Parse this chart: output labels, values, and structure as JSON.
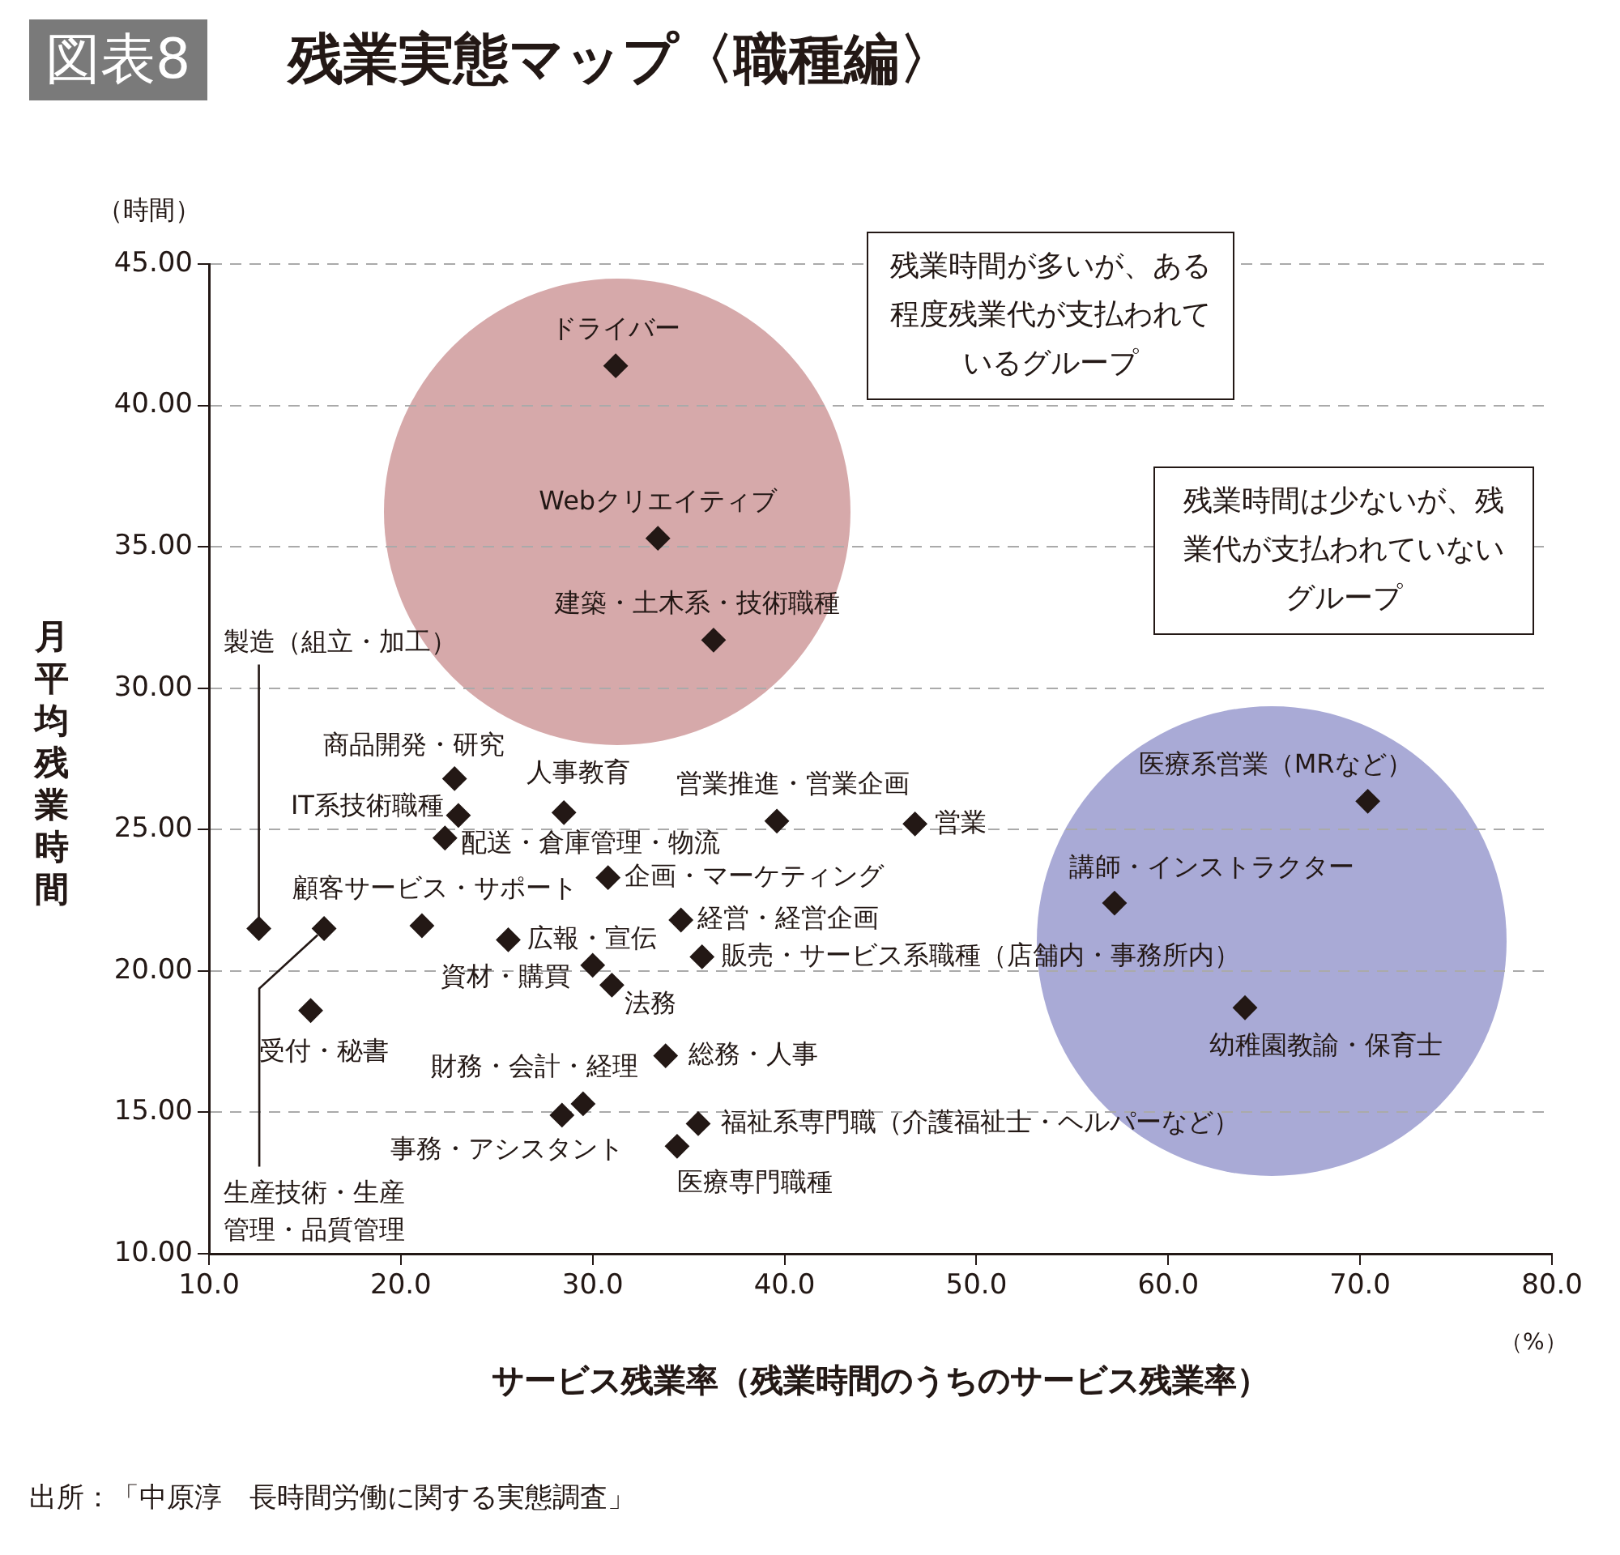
{
  "chart_data": {
    "type": "scatter",
    "title": "残業実態マップ〈職種編〉",
    "xlabel": "サービス残業率（残業時間のうちのサービス残業率）",
    "ylabel": "月平均残業時間",
    "x": [
      31.2,
      33.4,
      36.3,
      12.6,
      22.8,
      23.0,
      28.5,
      22.3,
      39.6,
      46.8,
      30.8,
      21.1,
      16.0,
      25.6,
      34.6,
      30.0,
      35.7,
      31.0,
      15.3,
      33.8,
      29.5,
      28.4,
      35.5,
      34.4,
      70.4,
      57.2,
      64.0
    ],
    "values": [
      41.4,
      35.3,
      31.7,
      21.5,
      26.8,
      25.5,
      25.6,
      24.7,
      25.3,
      25.2,
      23.3,
      21.6,
      21.5,
      21.1,
      21.8,
      20.2,
      20.5,
      19.5,
      18.6,
      17.0,
      15.3,
      14.9,
      14.6,
      13.8,
      26.0,
      22.4,
      18.7
    ],
    "color": "#231815",
    "marker": "diamond",
    "xlim": [
      10,
      80
    ],
    "ylim": [
      10,
      45
    ],
    "xticks": [
      {
        "value": 10,
        "label": "10.0"
      },
      {
        "value": 20,
        "label": "20.0"
      },
      {
        "value": 30,
        "label": "30.0"
      },
      {
        "value": 40,
        "label": "40.0"
      },
      {
        "value": 50,
        "label": "50.0"
      },
      {
        "value": 60,
        "label": "60.0"
      },
      {
        "value": 70,
        "label": "70.0"
      },
      {
        "value": 80,
        "label": "80.0"
      }
    ],
    "yticks": [
      {
        "value": 10,
        "label": "10.00"
      },
      {
        "value": 15,
        "label": "15.00"
      },
      {
        "value": 20,
        "label": "20.00"
      },
      {
        "value": 25,
        "label": "25.00"
      },
      {
        "value": 30,
        "label": "30.00"
      },
      {
        "value": 35,
        "label": "35.00"
      },
      {
        "value": 40,
        "label": "40.00"
      },
      {
        "value": 45,
        "label": "45.00"
      }
    ],
    "grid": "y",
    "annotations": [
      "図表8",
      "残業時間が多いが、ある程度残業代が支払われているグループ",
      "残業時間は少ないが、残業代が支払われていないグループ",
      "（時間）",
      "（%）",
      "出所：「中原淳　長時間労働に関する実態調査」",
      {
        "text": "ドライバー",
        "x": 31.2,
        "y": 41.4
      },
      {
        "text": "Webクリエイティブ",
        "x": 33.4,
        "y": 35.3
      },
      {
        "text": "建築・土木系・技術職種",
        "x": 36.3,
        "y": 31.7
      },
      {
        "text": "製造（組立・加工）",
        "x": 12.6,
        "y": 21.5
      },
      {
        "text": "商品開発・研究",
        "x": 22.8,
        "y": 26.8
      },
      {
        "text": "IT系技術職種",
        "x": 23.0,
        "y": 25.5
      },
      {
        "text": "人事教育",
        "x": 28.5,
        "y": 25.6
      },
      {
        "text": "配送・倉庫管理・物流",
        "x": 22.3,
        "y": 24.7
      },
      {
        "text": "営業推進・営業企画",
        "x": 39.6,
        "y": 25.3
      },
      {
        "text": "営業",
        "x": 46.8,
        "y": 25.2
      },
      {
        "text": "企画・マーケティング",
        "x": 30.8,
        "y": 23.3
      },
      {
        "text": "顧客サービス・サポート",
        "x": 21.1,
        "y": 21.6
      },
      {
        "text": "生産技術・生産管理・品質管理",
        "x": 16.0,
        "y": 21.5
      },
      {
        "text": "広報・宣伝",
        "x": 25.6,
        "y": 21.1
      },
      {
        "text": "経営・経営企画",
        "x": 34.6,
        "y": 21.8
      },
      {
        "text": "資材・購買",
        "x": 30.0,
        "y": 20.2
      },
      {
        "text": "販売・サービス系職種（店舗内・事務所内）",
        "x": 35.7,
        "y": 20.5
      },
      {
        "text": "法務",
        "x": 31.0,
        "y": 19.5
      },
      {
        "text": "受付・秘書",
        "x": 15.3,
        "y": 18.6
      },
      {
        "text": "総務・人事",
        "x": 33.8,
        "y": 17.0
      },
      {
        "text": "財務・会計・経理",
        "x": 29.5,
        "y": 15.3
      },
      {
        "text": "事務・アシスタント",
        "x": 28.4,
        "y": 14.9
      },
      {
        "text": "福祉系専門職（介護福祉士・ヘルパーなど）",
        "x": 35.5,
        "y": 14.6
      },
      {
        "text": "医療専門職種",
        "x": 34.4,
        "y": 13.8
      },
      {
        "text": "医療系営業（MRなど）",
        "x": 70.4,
        "y": 26.0
      },
      {
        "text": "講師・インストラクター",
        "x": 57.2,
        "y": 22.4
      },
      {
        "text": "幼稚園教諭・保育士",
        "x": 64.0,
        "y": 18.7
      }
    ]
  }
}
